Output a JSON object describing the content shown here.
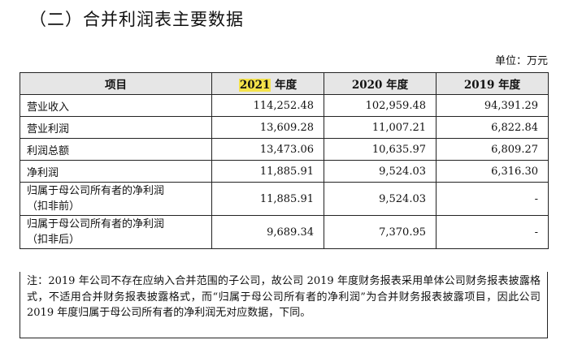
{
  "title": "（二）合并利润表主要数据",
  "unit": "单位：万元",
  "table": {
    "headers": [
      "项目",
      "2021",
      " 年度",
      "2020 年度",
      "2019 年度"
    ],
    "rows": [
      {
        "item": "营业收入",
        "v2021": "114,252.48",
        "v2020": "102,959.48",
        "v2019": "94,391.29"
      },
      {
        "item": "营业利润",
        "v2021": "13,609.28",
        "v2020": "11,007.21",
        "v2019": "6,822.84"
      },
      {
        "item": "利润总额",
        "v2021": "13,473.06",
        "v2020": "10,635.97",
        "v2019": "6,809.27"
      },
      {
        "item": "净利润",
        "v2021": "11,885.91",
        "v2020": "9,524.03",
        "v2019": "6,316.30"
      },
      {
        "item_l1": "归属于母公司所有者的净利润",
        "item_l2": "（扣非前）",
        "v2021": "11,885.91",
        "v2020": "9,524.03",
        "v2019": "-"
      },
      {
        "item_l1": "归属于母公司所有者的净利润",
        "item_l2": "（扣非后）",
        "v2021": "9,689.34",
        "v2020": "7,370.95",
        "v2019": "-"
      }
    ]
  },
  "note": "注：2019 年公司不存在应纳入合并范围的子公司，故公司 2019 年度财务报表采用单体公司财务报表披露格式，不适用合并财务报表披露格式，而“归属于母公司所有者的净利润”为合并财务报表披露项目，因此公司 2019 年度归属于母公司所有者的净利润无对应数据，下同。",
  "colors": {
    "header_bg": "#e6e6e6",
    "highlight": "#f4e24a"
  }
}
